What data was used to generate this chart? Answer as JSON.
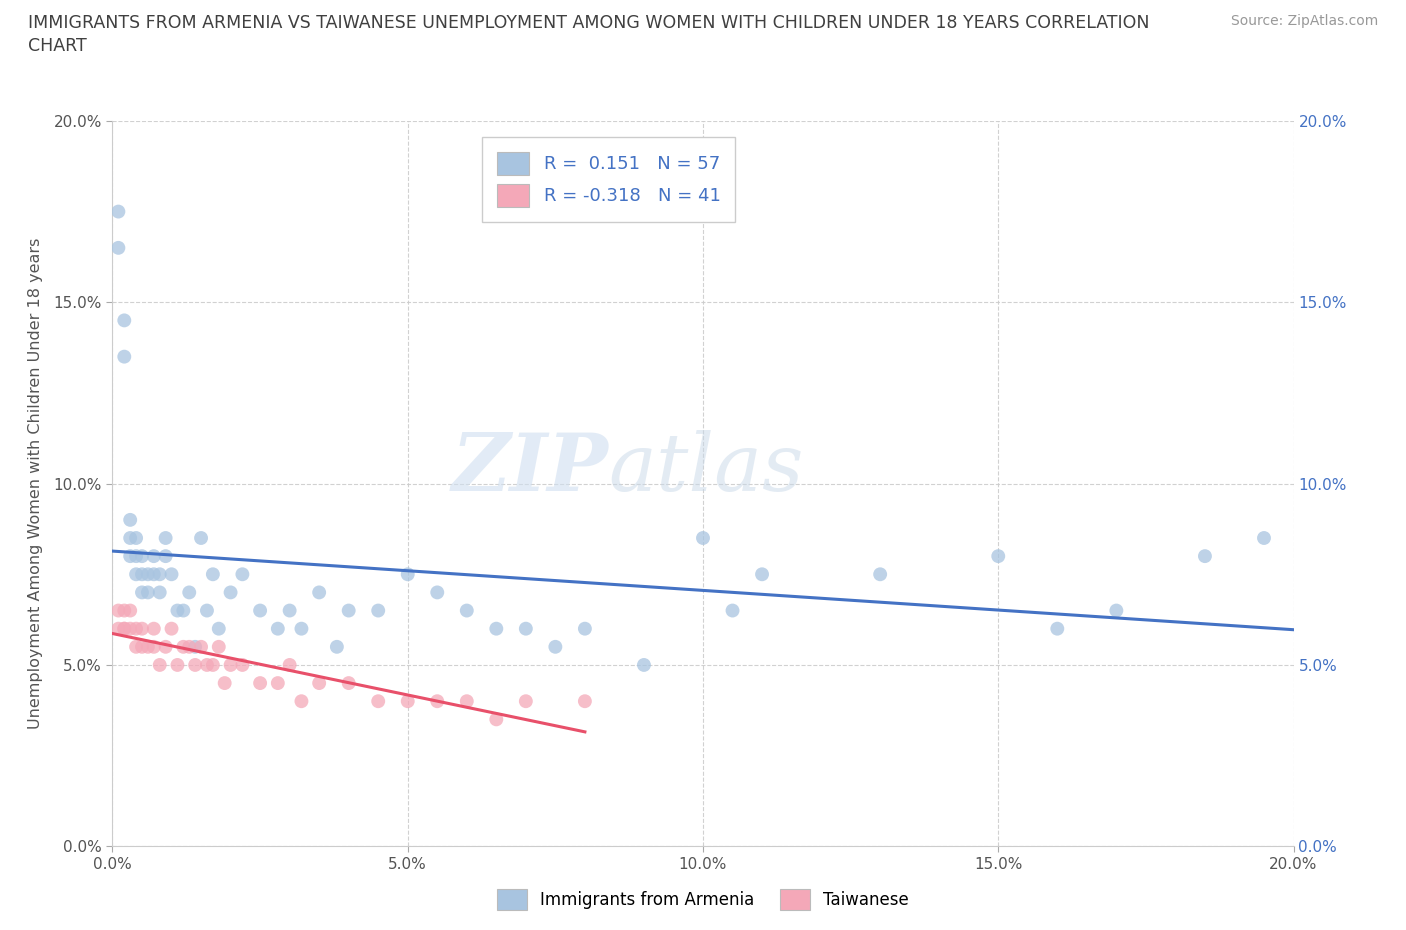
{
  "title_line1": "IMMIGRANTS FROM ARMENIA VS TAIWANESE UNEMPLOYMENT AMONG WOMEN WITH CHILDREN UNDER 18 YEARS CORRELATION",
  "title_line2": "CHART",
  "source_text": "Source: ZipAtlas.com",
  "ylabel": "Unemployment Among Women with Children Under 18 years",
  "xlim": [
    0,
    0.2
  ],
  "ylim": [
    0,
    0.2
  ],
  "ytick_vals": [
    0.0,
    0.05,
    0.1,
    0.15,
    0.2
  ],
  "ytick_labels_left": [
    "0.0%",
    "5.0%",
    "10.0%",
    "15.0%",
    "20.0%"
  ],
  "ytick_labels_right": [
    "0.0%",
    "5.0%",
    "10.0%",
    "15.0%",
    "20.0%"
  ],
  "xtick_vals": [
    0.0,
    0.05,
    0.1,
    0.15,
    0.2
  ],
  "xtick_labels": [
    "0.0%",
    "5.0%",
    "10.0%",
    "15.0%",
    "20.0%"
  ],
  "color_armenia": "#a8c4e0",
  "color_taiwanese": "#f4a8b8",
  "line_color_armenia": "#4472c4",
  "line_color_taiwanese": "#e8506a",
  "watermark_zip": "ZIP",
  "watermark_atlas": "atlas",
  "background_color": "#ffffff",
  "grid_color": "#cccccc",
  "title_color": "#404040",
  "legend_text_color": "#4472c4",
  "right_tick_color": "#4472c4",
  "armenia_x": [
    0.001,
    0.001,
    0.002,
    0.002,
    0.003,
    0.003,
    0.003,
    0.004,
    0.004,
    0.004,
    0.005,
    0.005,
    0.005,
    0.006,
    0.006,
    0.007,
    0.007,
    0.008,
    0.008,
    0.009,
    0.009,
    0.01,
    0.011,
    0.012,
    0.013,
    0.014,
    0.015,
    0.016,
    0.017,
    0.018,
    0.02,
    0.022,
    0.025,
    0.028,
    0.03,
    0.032,
    0.035,
    0.038,
    0.04,
    0.045,
    0.05,
    0.055,
    0.06,
    0.065,
    0.07,
    0.075,
    0.08,
    0.09,
    0.1,
    0.105,
    0.11,
    0.13,
    0.15,
    0.16,
    0.17,
    0.185,
    0.195
  ],
  "armenia_y": [
    0.175,
    0.165,
    0.145,
    0.135,
    0.09,
    0.085,
    0.08,
    0.085,
    0.08,
    0.075,
    0.08,
    0.075,
    0.07,
    0.075,
    0.07,
    0.08,
    0.075,
    0.075,
    0.07,
    0.085,
    0.08,
    0.075,
    0.065,
    0.065,
    0.07,
    0.055,
    0.085,
    0.065,
    0.075,
    0.06,
    0.07,
    0.075,
    0.065,
    0.06,
    0.065,
    0.06,
    0.07,
    0.055,
    0.065,
    0.065,
    0.075,
    0.07,
    0.065,
    0.06,
    0.06,
    0.055,
    0.06,
    0.05,
    0.085,
    0.065,
    0.075,
    0.075,
    0.08,
    0.06,
    0.065,
    0.08,
    0.085
  ],
  "taiwanese_x": [
    0.001,
    0.001,
    0.002,
    0.002,
    0.002,
    0.003,
    0.003,
    0.004,
    0.004,
    0.005,
    0.005,
    0.006,
    0.007,
    0.007,
    0.008,
    0.009,
    0.01,
    0.011,
    0.012,
    0.013,
    0.014,
    0.015,
    0.016,
    0.017,
    0.018,
    0.019,
    0.02,
    0.022,
    0.025,
    0.028,
    0.03,
    0.032,
    0.035,
    0.04,
    0.045,
    0.05,
    0.055,
    0.06,
    0.065,
    0.07,
    0.08
  ],
  "taiwanese_y": [
    0.065,
    0.06,
    0.06,
    0.06,
    0.065,
    0.065,
    0.06,
    0.06,
    0.055,
    0.06,
    0.055,
    0.055,
    0.06,
    0.055,
    0.05,
    0.055,
    0.06,
    0.05,
    0.055,
    0.055,
    0.05,
    0.055,
    0.05,
    0.05,
    0.055,
    0.045,
    0.05,
    0.05,
    0.045,
    0.045,
    0.05,
    0.04,
    0.045,
    0.045,
    0.04,
    0.04,
    0.04,
    0.04,
    0.035,
    0.04,
    0.04
  ]
}
